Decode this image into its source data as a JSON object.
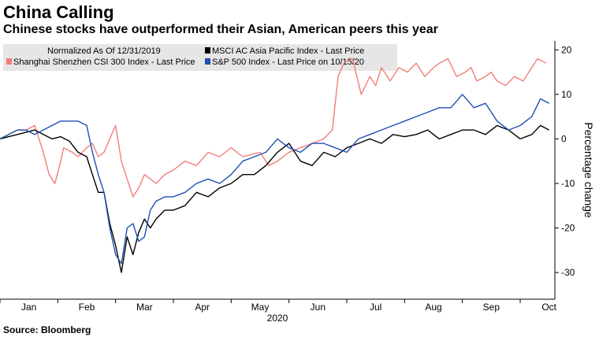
{
  "header": {
    "title": "China Calling",
    "subtitle": "Chinese stocks have outperformed their Asian, American peers this year"
  },
  "footer": {
    "source": "Source: Bloomberg"
  },
  "chart_data": {
    "type": "line",
    "title": "China Calling",
    "subtitle": "Chinese stocks have outperformed their Asian, American peers this year",
    "legend_header": "Normalized As Of 12/31/2019",
    "legend_position": "top",
    "xlabel": "2020",
    "ylabel": "Percentage change",
    "y_axis_side": "right",
    "ylim": [
      -36,
      22
    ],
    "yticks": [
      20,
      10,
      0,
      -10,
      -20,
      -30
    ],
    "xlim": [
      0,
      9.6
    ],
    "months": [
      "Jan",
      "Feb",
      "Mar",
      "Apr",
      "May",
      "Jun",
      "Jul",
      "Aug",
      "Sep",
      "Oct"
    ],
    "grid": false,
    "x_unit": "months since start of 2020",
    "series": [
      {
        "name": "Shanghai Shenzhen CSI 300 Index - Last Price",
        "color": "#f07f7a",
        "x": [
          0,
          0.15,
          0.3,
          0.45,
          0.6,
          0.75,
          0.85,
          0.95,
          1.05,
          1.1,
          1.25,
          1.35,
          1.5,
          1.6,
          1.7,
          1.8,
          1.9,
          2.0,
          2.1,
          2.2,
          2.3,
          2.4,
          2.5,
          2.6,
          2.7,
          2.85,
          3.0,
          3.2,
          3.4,
          3.6,
          3.8,
          4.0,
          4.2,
          4.5,
          4.65,
          4.8,
          5.0,
          5.2,
          5.4,
          5.6,
          5.75,
          5.85,
          5.95,
          6.1,
          6.25,
          6.4,
          6.5,
          6.6,
          6.75,
          6.9,
          7.05,
          7.2,
          7.35,
          7.5,
          7.6,
          7.75,
          7.9,
          8.05,
          8.15,
          8.25,
          8.4,
          8.5,
          8.6,
          8.75,
          8.9,
          9.05,
          9.2,
          9.3,
          9.45
        ],
        "values": [
          0,
          1,
          2,
          2,
          3,
          -3,
          -8,
          -10,
          -5,
          -2,
          -3,
          -4,
          -2,
          -1,
          -4,
          -3,
          0,
          3,
          -5,
          -9,
          -13,
          -11,
          -8,
          -9,
          -10,
          -8,
          -7,
          -5,
          -6,
          -3,
          -4,
          -2,
          -4,
          -3,
          -6,
          -5,
          -3,
          -2,
          -1,
          0,
          2,
          14,
          17,
          18,
          10,
          14,
          12,
          16,
          13,
          16,
          15,
          17,
          14,
          16,
          17,
          18,
          14,
          15,
          16,
          13,
          14,
          15,
          13,
          12,
          14,
          13,
          16,
          18,
          17
        ]
      },
      {
        "name": "MSCI AC Asia Pacific Index - Last Price",
        "color": "#000000",
        "x": [
          0,
          0.15,
          0.3,
          0.45,
          0.6,
          0.75,
          0.9,
          1.05,
          1.2,
          1.35,
          1.5,
          1.6,
          1.7,
          1.8,
          1.9,
          2.0,
          2.1,
          2.2,
          2.3,
          2.4,
          2.5,
          2.6,
          2.7,
          2.85,
          3.0,
          3.2,
          3.4,
          3.6,
          3.8,
          4.0,
          4.2,
          4.4,
          4.6,
          4.8,
          5.0,
          5.2,
          5.4,
          5.6,
          5.8,
          6.0,
          6.2,
          6.4,
          6.6,
          6.8,
          7.0,
          7.2,
          7.4,
          7.6,
          7.8,
          8.0,
          8.2,
          8.4,
          8.6,
          8.8,
          9.0,
          9.2,
          9.35,
          9.5
        ],
        "values": [
          0,
          0.5,
          1,
          1.5,
          2,
          1,
          0,
          0.5,
          -0.5,
          -3,
          -4,
          -8,
          -12,
          -12,
          -19,
          -24,
          -30,
          -22,
          -26,
          -21,
          -18,
          -20,
          -18,
          -16,
          -16,
          -15,
          -12,
          -13,
          -11,
          -10,
          -8,
          -8,
          -6,
          -3,
          -1,
          -5,
          -6,
          -3,
          -4,
          -2,
          -1,
          0,
          -1,
          1,
          0.5,
          1,
          2,
          0,
          1,
          2,
          2,
          1,
          3,
          2,
          0,
          1,
          3,
          2
        ]
      },
      {
        "name": "S&P 500 Index - Last Price on 10/15/20",
        "color": "#1f4fb4",
        "x": [
          0,
          0.15,
          0.3,
          0.45,
          0.6,
          0.75,
          0.9,
          1.05,
          1.2,
          1.35,
          1.5,
          1.6,
          1.7,
          1.8,
          1.9,
          2.0,
          2.1,
          2.2,
          2.3,
          2.4,
          2.5,
          2.6,
          2.7,
          2.85,
          3.0,
          3.2,
          3.4,
          3.6,
          3.8,
          4.0,
          4.2,
          4.4,
          4.6,
          4.8,
          5.0,
          5.2,
          5.4,
          5.6,
          5.8,
          6.0,
          6.2,
          6.4,
          6.6,
          6.8,
          7.0,
          7.2,
          7.4,
          7.6,
          7.8,
          8.0,
          8.2,
          8.4,
          8.6,
          8.8,
          9.0,
          9.2,
          9.35,
          9.5
        ],
        "values": [
          0,
          1,
          2,
          2,
          1,
          2,
          3,
          4,
          4,
          4,
          3,
          -3,
          -8,
          -12,
          -20,
          -26,
          -28,
          -20,
          -19,
          -23,
          -22,
          -16,
          -14,
          -13,
          -13,
          -12,
          -10,
          -9,
          -10,
          -8,
          -5,
          -4,
          -3,
          0,
          -2,
          -3,
          -1,
          -1,
          -2,
          -3,
          0,
          1,
          2,
          3,
          4,
          5,
          6,
          7,
          7,
          10,
          7,
          8,
          4,
          2,
          3,
          5,
          9,
          8
        ]
      }
    ]
  }
}
